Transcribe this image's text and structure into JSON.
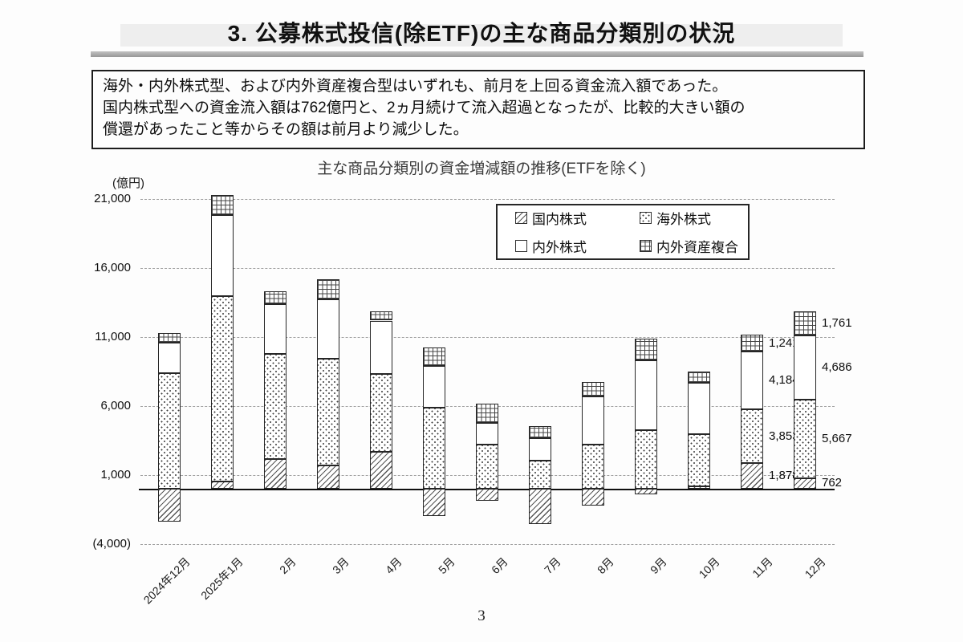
{
  "page": {
    "title": "3. 公募株式投信(除ETF)の主な商品分類別の状況",
    "page_number": "3"
  },
  "summary_box": {
    "lines": [
      "海外・内外株式型、および内外資産複合型はいずれも、前月を上回る資金流入額であった。",
      "国内株式型への資金流入額は762億円と、2ヵ月続けて流入超過となったが、比較的大きい額の",
      "償還があったこと等からその額は前月より減少した。"
    ]
  },
  "chart": {
    "title": "主な商品分類別の資金増減額の推移(ETFを除く)",
    "unit_label": "(億円)"
  },
  "chart_data": {
    "type": "bar",
    "stacked": true,
    "title": "主な商品分類別の資金増減額の推移(ETFを除く)",
    "ylabel": "(億円)",
    "ylim": [
      -4000,
      22000
    ],
    "grid": true,
    "legend_position": "upper right",
    "categories": [
      "2024年12月",
      "2025年1月",
      "2月",
      "3月",
      "4月",
      "5月",
      "6月",
      "7月",
      "8月",
      "9月",
      "10月",
      "11月",
      "12月"
    ],
    "series": [
      {
        "name": "国内株式",
        "pattern": "hatch",
        "values": [
          -2400,
          500,
          2130,
          1700,
          2700,
          -2000,
          -900,
          -2550,
          -1200,
          -400,
          200,
          1878,
          762
        ]
      },
      {
        "name": "海外株式",
        "pattern": "dots",
        "values": [
          8400,
          13450,
          7640,
          7740,
          5610,
          5900,
          3200,
          2030,
          3200,
          4270,
          3780,
          3853,
          5667
        ]
      },
      {
        "name": "内外株式",
        "pattern": "plain",
        "values": [
          2200,
          5900,
          3580,
          4260,
          3870,
          3000,
          1550,
          1650,
          3480,
          5040,
          3700,
          4184,
          4686
        ]
      },
      {
        "name": "内外資産複合",
        "pattern": "grid",
        "values": [
          700,
          1450,
          930,
          1450,
          680,
          1350,
          1390,
          870,
          1060,
          1570,
          780,
          1241,
          1761
        ]
      }
    ],
    "y_ticks": [
      {
        "value": 21000,
        "label": "21,000"
      },
      {
        "value": 16000,
        "label": "16,000"
      },
      {
        "value": 11000,
        "label": "11,000"
      },
      {
        "value": 6000,
        "label": "6,000"
      },
      {
        "value": 1000,
        "label": "1,000"
      },
      {
        "value": -4000,
        "label": "(4,000)"
      }
    ],
    "annotations": [
      {
        "category_index": 11,
        "labels": [
          "1,878",
          "3,853",
          "4,184",
          "1,241"
        ]
      },
      {
        "category_index": 12,
        "labels": [
          "762",
          "5,667",
          "4,686",
          "1,761"
        ]
      }
    ]
  }
}
